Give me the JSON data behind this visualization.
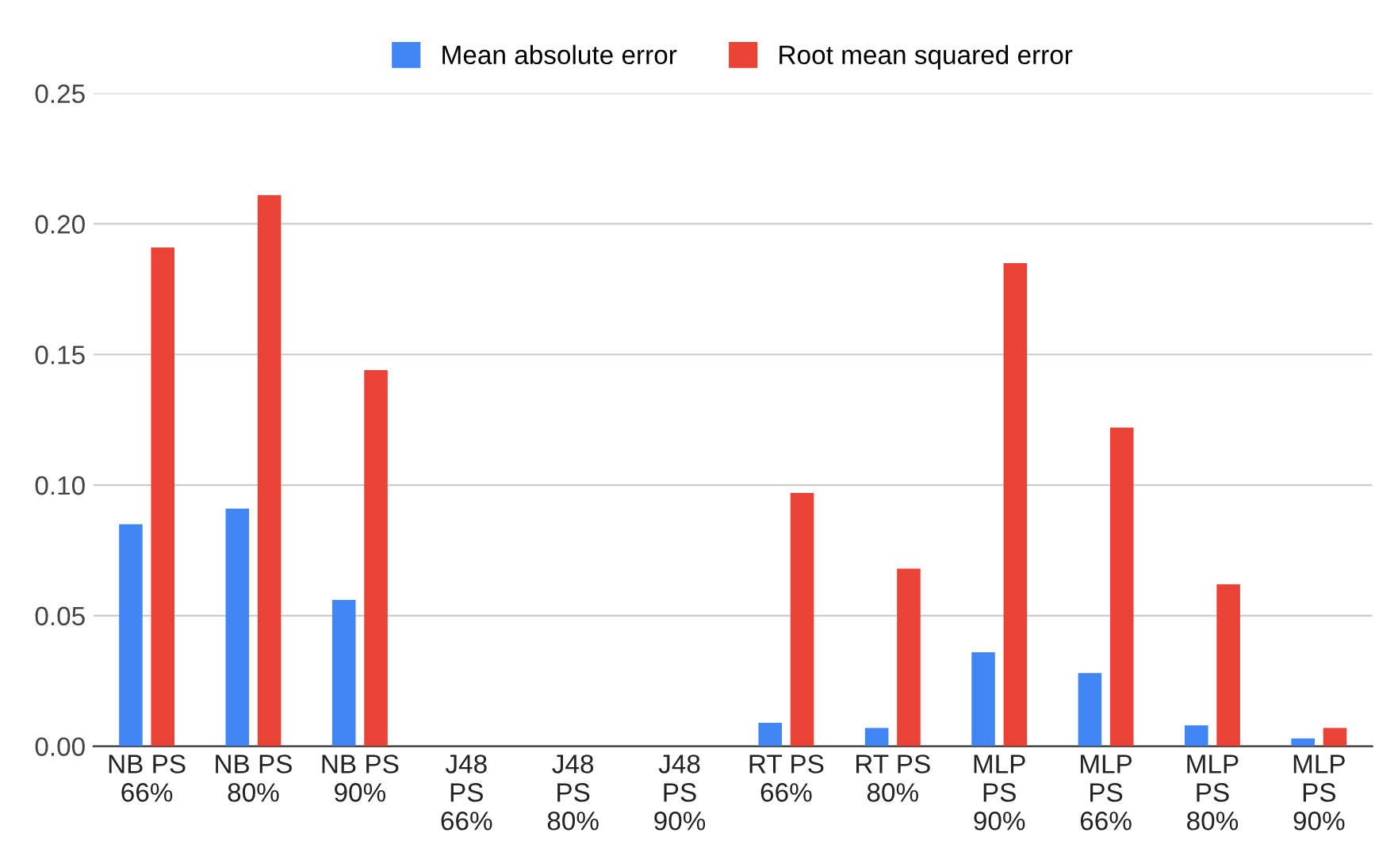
{
  "chart_data": {
    "type": "bar",
    "categories": [
      "NB PS\n66%",
      "NB PS\n80%",
      "NB PS\n90%",
      "J48\nPS\n66%",
      "J48\nPS\n80%",
      "J48\nPS\n90%",
      "RT PS\n66%",
      "RT PS\n80%",
      "MLP\nPS\n90%",
      "MLP\nPS\n66%",
      "MLP\nPS\n80%",
      "MLP\nPS\n90%"
    ],
    "series": [
      {
        "name": "Mean absolute error",
        "color": "#4285f4",
        "values": [
          0.085,
          0.091,
          0.056,
          0,
          0,
          0,
          0.009,
          0.007,
          0.036,
          0.028,
          0.008,
          0.003
        ]
      },
      {
        "name": "Root mean squared error",
        "color": "#ea4335",
        "values": [
          0.191,
          0.211,
          0.144,
          0,
          0,
          0,
          0.097,
          0.068,
          0.185,
          0.122,
          0.062,
          0.007
        ]
      }
    ],
    "ylim": [
      0,
      0.25
    ],
    "yticks": [
      {
        "value": 0,
        "label": "0.00"
      },
      {
        "value": 0.05,
        "label": "0.05"
      },
      {
        "value": 0.1,
        "label": "0.10"
      },
      {
        "value": 0.15,
        "label": "0.15"
      },
      {
        "value": 0.2,
        "label": "0.20"
      },
      {
        "value": 0.25,
        "label": "0.25"
      }
    ],
    "grid": "y",
    "legend": "top"
  }
}
